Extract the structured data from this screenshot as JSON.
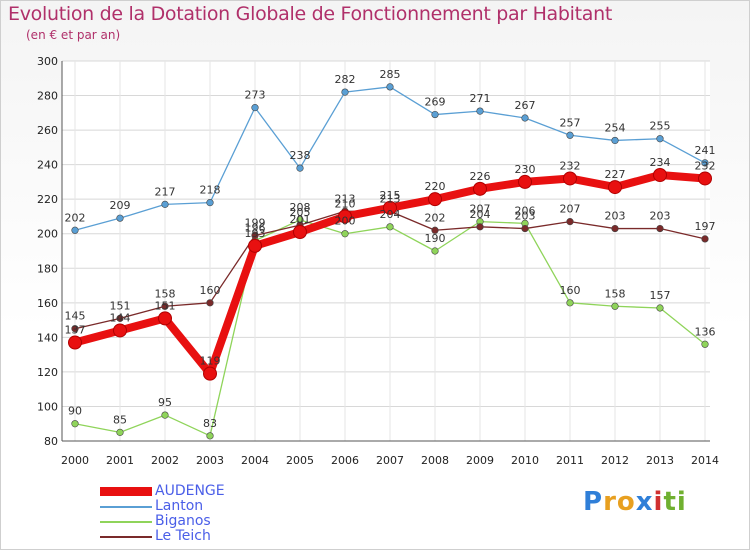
{
  "title": "Evolution de la Dotation Globale de Fonctionnement par Habitant",
  "subtitle": "(en € et par an)",
  "logo": {
    "letters": [
      "P",
      "r",
      "o",
      "x",
      "i",
      "t",
      "i"
    ],
    "colors": [
      "#2f7fd8",
      "#e8a020",
      "#e8a020",
      "#2f7fd8",
      "#d03030",
      "#70b030",
      "#70b030"
    ]
  },
  "chart_data": {
    "type": "line",
    "categories": [
      "2000",
      "2001",
      "2002",
      "2003",
      "2004",
      "2005",
      "2006",
      "2007",
      "2008",
      "2009",
      "2010",
      "2011",
      "2012",
      "2013",
      "2014"
    ],
    "ylim": [
      80,
      300
    ],
    "yticks": [
      80,
      100,
      120,
      140,
      160,
      180,
      200,
      220,
      240,
      260,
      280,
      300
    ],
    "grid": true,
    "legend_position": "bottom-left",
    "series": [
      {
        "name": "AUDENGE",
        "color": "#e81010",
        "values": [
          137,
          144,
          151,
          119,
          193,
          201,
          210,
          215,
          220,
          226,
          230,
          232,
          227,
          234,
          232
        ],
        "labels": [
          "137",
          "144",
          "151",
          "119",
          "193",
          "201",
          "210",
          "215",
          "220",
          "226",
          "230",
          "232",
          "227",
          "234",
          "232"
        ]
      },
      {
        "name": "Lanton",
        "color": "#5a9fd4",
        "values": [
          202,
          209,
          217,
          218,
          273,
          238,
          282,
          285,
          269,
          271,
          267,
          257,
          254,
          255,
          241
        ],
        "labels": [
          "202",
          "209",
          "217",
          "218",
          "273",
          "238",
          "282",
          "285",
          "269",
          "271",
          "267",
          "257",
          "254",
          "255",
          "241"
        ]
      },
      {
        "name": "Biganos",
        "color": "#8fd45a",
        "values": [
          90,
          85,
          95,
          83,
          196,
          208,
          200,
          204,
          190,
          207,
          206,
          160,
          158,
          157,
          136
        ],
        "labels": [
          "90",
          "85",
          "95",
          "83",
          "196",
          "208",
          "200",
          "204",
          "190",
          "207",
          "206",
          "160",
          "158",
          "157",
          "136"
        ]
      },
      {
        "name": "Le Teich",
        "color": "#7a2a2a",
        "values": [
          145,
          151,
          158,
          160,
          199,
          205,
          213,
          213,
          202,
          204,
          203,
          207,
          203,
          203,
          197
        ],
        "labels": [
          "145",
          "151",
          "158",
          "160",
          "199",
          "205",
          "213",
          "213",
          "202",
          "204",
          "203",
          "207",
          "203",
          "203",
          "197"
        ]
      }
    ]
  }
}
